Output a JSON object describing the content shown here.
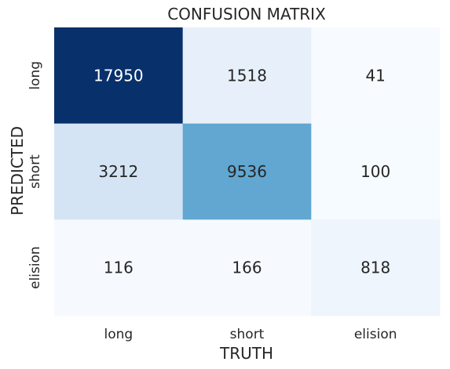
{
  "chart_data": {
    "type": "heatmap",
    "title": "CONFUSION MATRIX",
    "xlabel": "TRUTH",
    "ylabel": "PREDICTED",
    "x_categories": [
      "long",
      "short",
      "elision"
    ],
    "y_categories": [
      "long",
      "short",
      "elision"
    ],
    "values": [
      [
        17950,
        1518,
        41
      ],
      [
        3212,
        9536,
        100
      ],
      [
        116,
        166,
        818
      ]
    ],
    "colormap": "Blues",
    "colorbar": false,
    "grid": false
  }
}
